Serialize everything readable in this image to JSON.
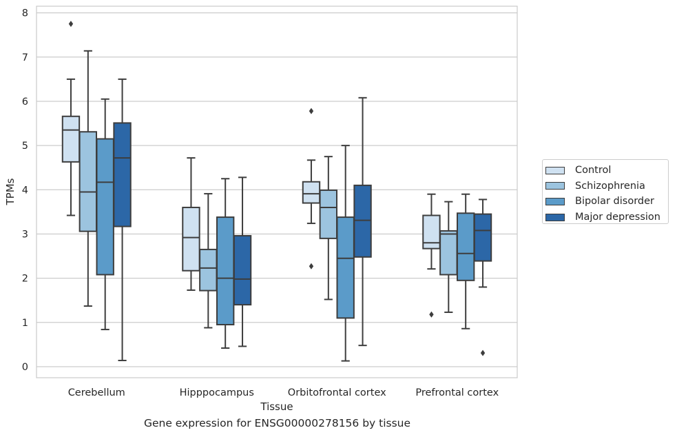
{
  "chart_data": {
    "type": "box",
    "xlabel": "Tissue",
    "ylabel": "TPMs",
    "caption": "Gene expression for ENSG00000278156 by tissue",
    "ylim": [
      -0.25,
      8.15
    ],
    "yticks": [
      "0",
      "1",
      "2",
      "3",
      "4",
      "5",
      "6",
      "7",
      "8"
    ],
    "grid": "horizontal",
    "legend_position": "right",
    "categories": [
      "Cerebellum",
      "Hipppocampus",
      "Orbitofrontal cortex",
      "Prefrontal cortex"
    ],
    "series": [
      {
        "name": "Control",
        "color": "#cfe1f1",
        "boxes": [
          {
            "whislo": 3.42,
            "q1": 4.63,
            "med": 5.35,
            "q3": 5.66,
            "whishi": 6.5,
            "fliers": [
              7.75
            ]
          },
          {
            "whislo": 1.73,
            "q1": 2.17,
            "med": 2.92,
            "q3": 3.6,
            "whishi": 4.72,
            "fliers": []
          },
          {
            "whislo": 3.24,
            "q1": 3.7,
            "med": 3.91,
            "q3": 4.18,
            "whishi": 4.67,
            "fliers": [
              5.78,
              2.27
            ]
          },
          {
            "whislo": 2.21,
            "q1": 2.67,
            "med": 2.8,
            "q3": 3.42,
            "whishi": 3.9,
            "fliers": [
              1.18
            ]
          }
        ]
      },
      {
        "name": "Schizophrenia",
        "color": "#9cc4df",
        "boxes": [
          {
            "whislo": 1.37,
            "q1": 3.06,
            "med": 3.95,
            "q3": 5.31,
            "whishi": 7.14,
            "fliers": []
          },
          {
            "whislo": 0.88,
            "q1": 1.72,
            "med": 2.23,
            "q3": 2.65,
            "whishi": 3.91,
            "fliers": []
          },
          {
            "whislo": 1.52,
            "q1": 2.9,
            "med": 3.6,
            "q3": 3.99,
            "whishi": 4.75,
            "fliers": []
          },
          {
            "whislo": 1.23,
            "q1": 2.08,
            "med": 3.0,
            "q3": 3.07,
            "whishi": 3.73,
            "fliers": []
          }
        ]
      },
      {
        "name": "Bipolar disorder",
        "color": "#5b9bc9",
        "boxes": [
          {
            "whislo": 0.84,
            "q1": 2.08,
            "med": 4.17,
            "q3": 5.15,
            "whishi": 6.05,
            "fliers": []
          },
          {
            "whislo": 0.42,
            "q1": 0.95,
            "med": 2.0,
            "q3": 3.38,
            "whishi": 4.25,
            "fliers": []
          },
          {
            "whislo": 0.13,
            "q1": 1.1,
            "med": 2.45,
            "q3": 3.38,
            "whishi": 5.0,
            "fliers": []
          },
          {
            "whislo": 0.86,
            "q1": 1.95,
            "med": 2.56,
            "q3": 3.47,
            "whishi": 3.9,
            "fliers": []
          }
        ]
      },
      {
        "name": "Major depression",
        "color": "#2c67a7",
        "boxes": [
          {
            "whislo": 0.14,
            "q1": 3.17,
            "med": 4.72,
            "q3": 5.51,
            "whishi": 6.5,
            "fliers": []
          },
          {
            "whislo": 0.46,
            "q1": 1.4,
            "med": 1.98,
            "q3": 2.96,
            "whishi": 4.28,
            "fliers": []
          },
          {
            "whislo": 0.48,
            "q1": 2.48,
            "med": 3.31,
            "q3": 4.1,
            "whishi": 6.08,
            "fliers": []
          },
          {
            "whislo": 1.8,
            "q1": 2.39,
            "med": 3.08,
            "q3": 3.45,
            "whishi": 3.78,
            "fliers": [
              0.31
            ]
          }
        ]
      }
    ]
  }
}
